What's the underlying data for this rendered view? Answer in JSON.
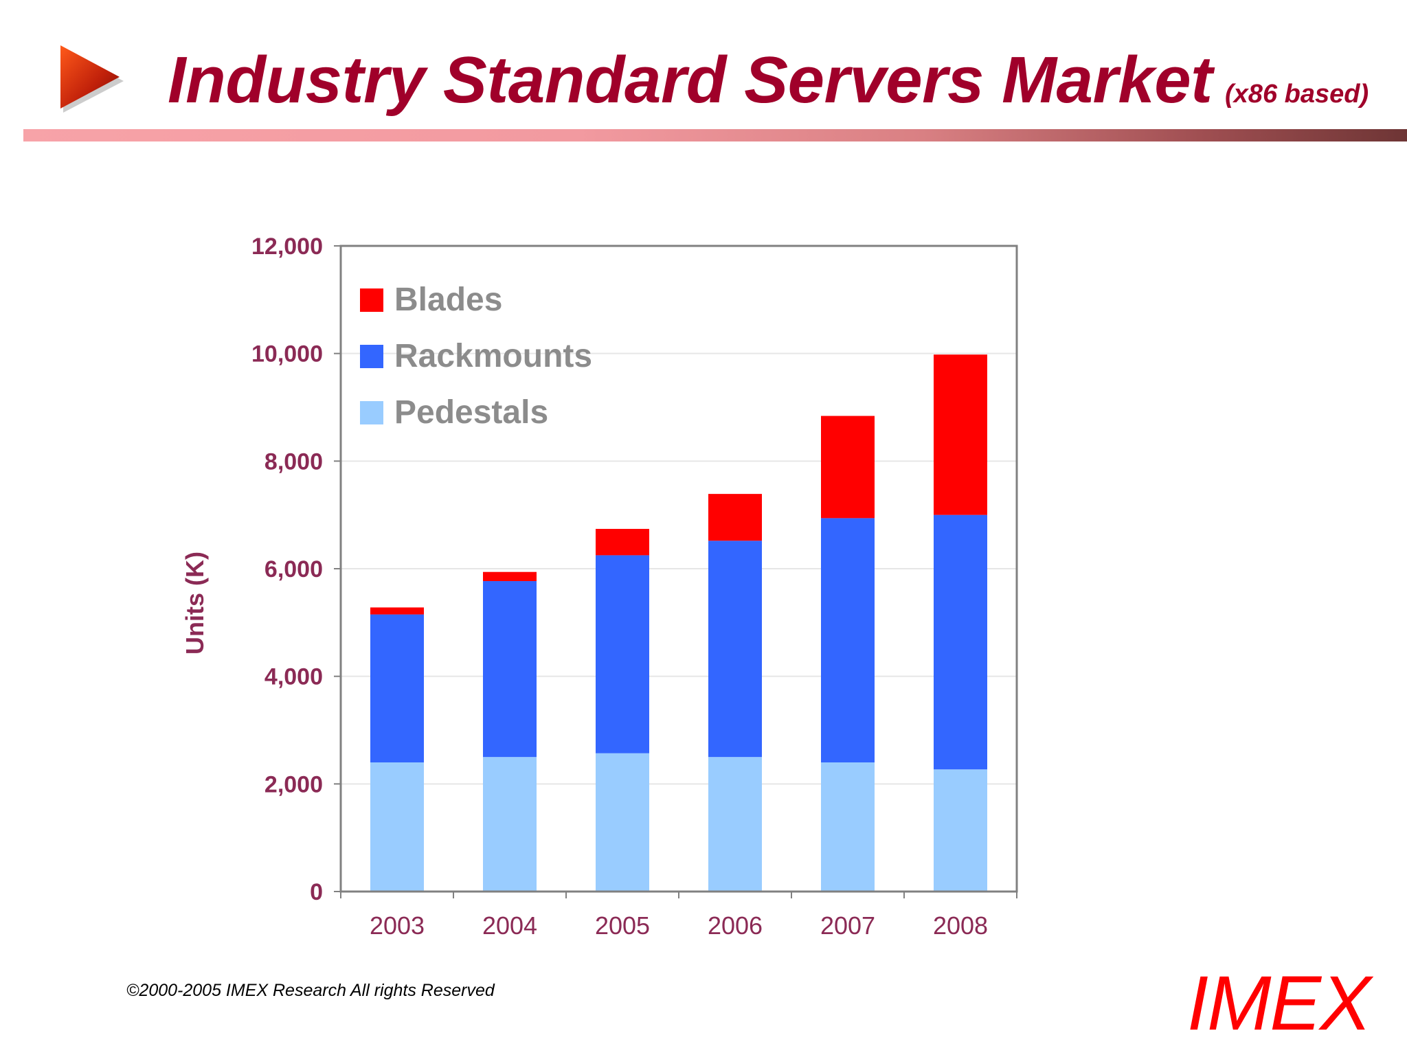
{
  "slide": {
    "title": "Industry Standard Servers Market",
    "subtitle": "(x86 based)",
    "footer_copyright": "©2000-2005  IMEX Research All rights Reserved",
    "footer_logo": "IMEX",
    "arrow_icon": "play-triangle-icon",
    "colors": {
      "title": "#a0002a",
      "axis_text": "#8b2a55",
      "logo": "#ff0000"
    }
  },
  "chart_data": {
    "type": "bar",
    "stacked": true,
    "title": "",
    "xlabel": "",
    "ylabel": "Units (K)",
    "categories": [
      "2003",
      "2004",
      "2005",
      "2006",
      "2007",
      "2008"
    ],
    "ylim": [
      0,
      12000
    ],
    "yticks": [
      0,
      2000,
      4000,
      6000,
      8000,
      10000,
      12000
    ],
    "ytick_labels": [
      "0",
      "2,000",
      "4,000",
      "6,000",
      "8,000",
      "10,000",
      "12,000"
    ],
    "grid": true,
    "legend_position": "top-left (inside plot)",
    "series": [
      {
        "name": "Pedestals",
        "color": "#99ccff",
        "values": [
          2400,
          2500,
          2570,
          2500,
          2400,
          2270
        ]
      },
      {
        "name": "Rackmounts",
        "color": "#3366ff",
        "values": [
          2750,
          3270,
          3680,
          4020,
          4540,
          4730
        ]
      },
      {
        "name": "Blades",
        "color": "#ff0000",
        "values": [
          130,
          170,
          490,
          870,
          1900,
          2980
        ]
      }
    ],
    "legend_order": [
      "Blades",
      "Rackmounts",
      "Pedestals"
    ]
  }
}
